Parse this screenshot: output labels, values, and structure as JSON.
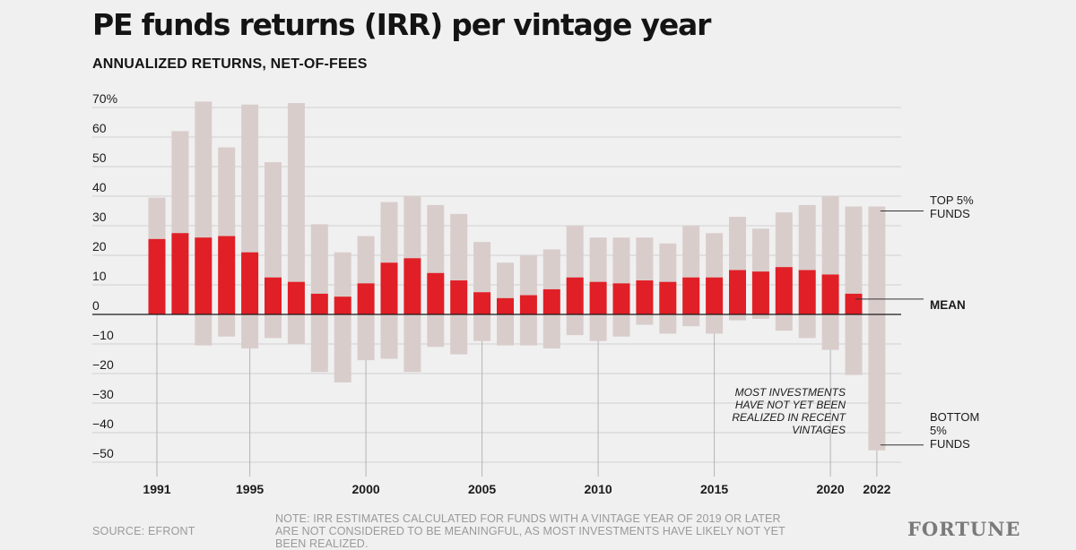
{
  "header": {
    "title": "PE funds returns (IRR) per vintage year",
    "subtitle": "ANNUALIZED RETURNS, NET-OF-FEES"
  },
  "chart_data": {
    "type": "bar",
    "subtype": "range-bar with mean",
    "xlabel": "",
    "ylabel": "",
    "ylim": [
      -50,
      70
    ],
    "y_ticks": [
      70,
      60,
      50,
      40,
      30,
      20,
      10,
      0,
      -10,
      -20,
      -30,
      -40,
      -50
    ],
    "y_tick_labels": [
      "70%",
      "60",
      "50",
      "40",
      "30",
      "20",
      "10",
      "0",
      "−10",
      "−20",
      "−30",
      "−40",
      "−50"
    ],
    "x_tick_labels": [
      "1991",
      "1995",
      "2000",
      "2005",
      "2010",
      "2015",
      "2020",
      "2022"
    ],
    "grid": true,
    "categories": [
      1991,
      1992,
      1993,
      1994,
      1995,
      1996,
      1997,
      1998,
      1999,
      2000,
      2001,
      2002,
      2003,
      2004,
      2005,
      2006,
      2007,
      2008,
      2009,
      2010,
      2011,
      2012,
      2013,
      2014,
      2015,
      2016,
      2017,
      2018,
      2019,
      2020,
      2021,
      2022
    ],
    "series": [
      {
        "name": "TOP 5% FUNDS",
        "values": [
          39.5,
          62,
          72,
          56.5,
          71,
          51.5,
          71.5,
          30.5,
          21,
          26.5,
          38,
          40,
          37,
          34,
          24.5,
          17.5,
          20,
          22,
          30,
          26,
          26,
          26,
          24,
          30,
          27.5,
          33,
          29,
          34.5,
          37,
          40,
          36.5,
          36.5
        ]
      },
      {
        "name": "MEAN",
        "values": [
          25.5,
          27.5,
          26,
          26.5,
          21,
          12.5,
          11,
          7,
          6,
          10.5,
          17.5,
          19,
          14,
          11.5,
          7.5,
          5.5,
          6.5,
          8.5,
          12.5,
          11,
          10.5,
          11.5,
          11,
          12.5,
          12.5,
          15,
          14.5,
          16,
          15,
          13.5,
          7,
          null
        ]
      },
      {
        "name": "BOTTOM 5% FUNDS",
        "values": [
          0,
          0,
          -10.5,
          -7.5,
          -11.5,
          -8,
          -10,
          -19.5,
          -23,
          -15.5,
          -15,
          -19.5,
          -11,
          -13.5,
          -9,
          -10.5,
          -10.5,
          -11.5,
          -7,
          -9,
          -7.5,
          -3.5,
          -6.5,
          -4,
          -6.5,
          -2,
          -1.5,
          -5.5,
          -8,
          -12,
          -20.5,
          -46
        ]
      }
    ],
    "colors": {
      "range": "#d9cdcb",
      "mean": "#e11f26",
      "grid": "#cfcfcf",
      "baseline": "#1a1a1a"
    }
  },
  "annotations": {
    "top": [
      "TOP 5%",
      "FUNDS"
    ],
    "mean": "MEAN",
    "bottom": [
      "BOTTOM",
      "5%",
      "FUNDS"
    ],
    "recent": [
      "MOST INVESTMENTS",
      "HAVE NOT YET BEEN",
      "REALIZED IN RECENT",
      "VINTAGES"
    ]
  },
  "footer": {
    "source": "SOURCE: EFRONT",
    "note": "NOTE: IRR ESTIMATES CALCULATED FOR FUNDS WITH A VINTAGE YEAR OF 2019 OR LATER ARE NOT CONSIDERED TO BE MEANINGFUL, AS MOST INVESTMENTS HAVE LIKELY NOT YET BEEN REALIZED.",
    "logo": "FORTUNE"
  }
}
